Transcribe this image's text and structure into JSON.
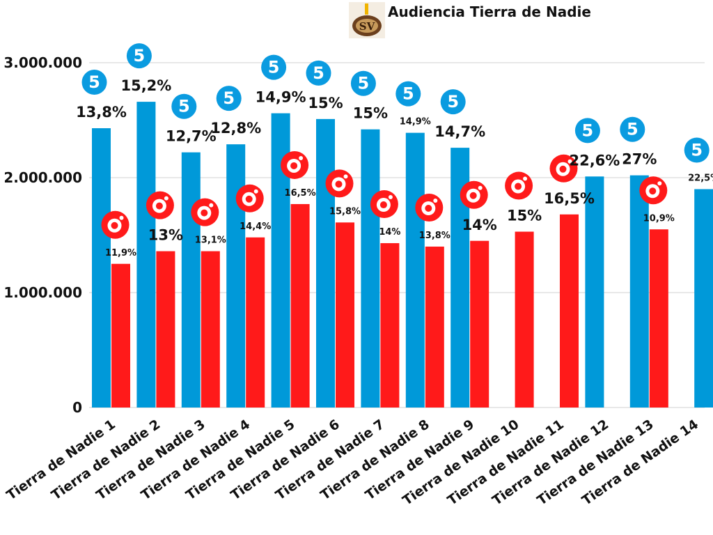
{
  "chart_data": {
    "type": "bar",
    "title": "Audiencia Tierra de Nadie",
    "logo_text": "SV",
    "categories": [
      "Tierra de Nadie 1",
      "Tierra de Nadie 2",
      "Tierra de Nadie 3",
      "Tierra de Nadie 4",
      "Tierra de Nadie 5",
      "Tierra de Nadie 6",
      "Tierra de Nadie 7",
      "Tierra de Nadie 8",
      "Tierra de Nadie 9",
      "Tierra de Nadie 10",
      "Tierra de Nadie 11",
      "Tierra de Nadie 12",
      "Tierra de Nadie 13",
      "Tierra de Nadie 14"
    ],
    "y_ticks": [
      {
        "value": 0,
        "label": "0"
      },
      {
        "value": 1000000,
        "label": "1.000.000"
      },
      {
        "value": 2000000,
        "label": "2.000.000"
      },
      {
        "value": 3000000,
        "label": "3.000.000"
      }
    ],
    "ylim": [
      0,
      3000000
    ],
    "grid": true,
    "series": [
      {
        "channel": "telecinco",
        "logo_icon": "telecinco-logo-icon",
        "color": "#0099d9",
        "values": [
          2430000,
          2660000,
          2220000,
          2290000,
          2560000,
          2510000,
          2420000,
          2390000,
          2260000,
          null,
          null,
          2010000,
          2020000,
          1900000
        ],
        "labels": [
          "13,8%",
          "15,2%",
          "12,7%",
          "12,8%",
          "14,9%",
          "15%",
          "15%",
          "14,9%",
          "14,7%",
          "",
          "",
          "22,6%",
          "27%",
          "22,5%"
        ]
      },
      {
        "channel": "cuatro",
        "logo_icon": "cuatro-logo-icon",
        "color": "#ff1a1a",
        "values": [
          1250000,
          1360000,
          1360000,
          1480000,
          1770000,
          1610000,
          1430000,
          1400000,
          1450000,
          1530000,
          1680000,
          null,
          1550000,
          null
        ],
        "labels": [
          "11,9%",
          "13%",
          "13,1%",
          "14,4%",
          "16,5%",
          "15,8%",
          "14%",
          "13,8%",
          "14%",
          "15%",
          "16,5%",
          "",
          "10,9%",
          ""
        ]
      }
    ]
  }
}
